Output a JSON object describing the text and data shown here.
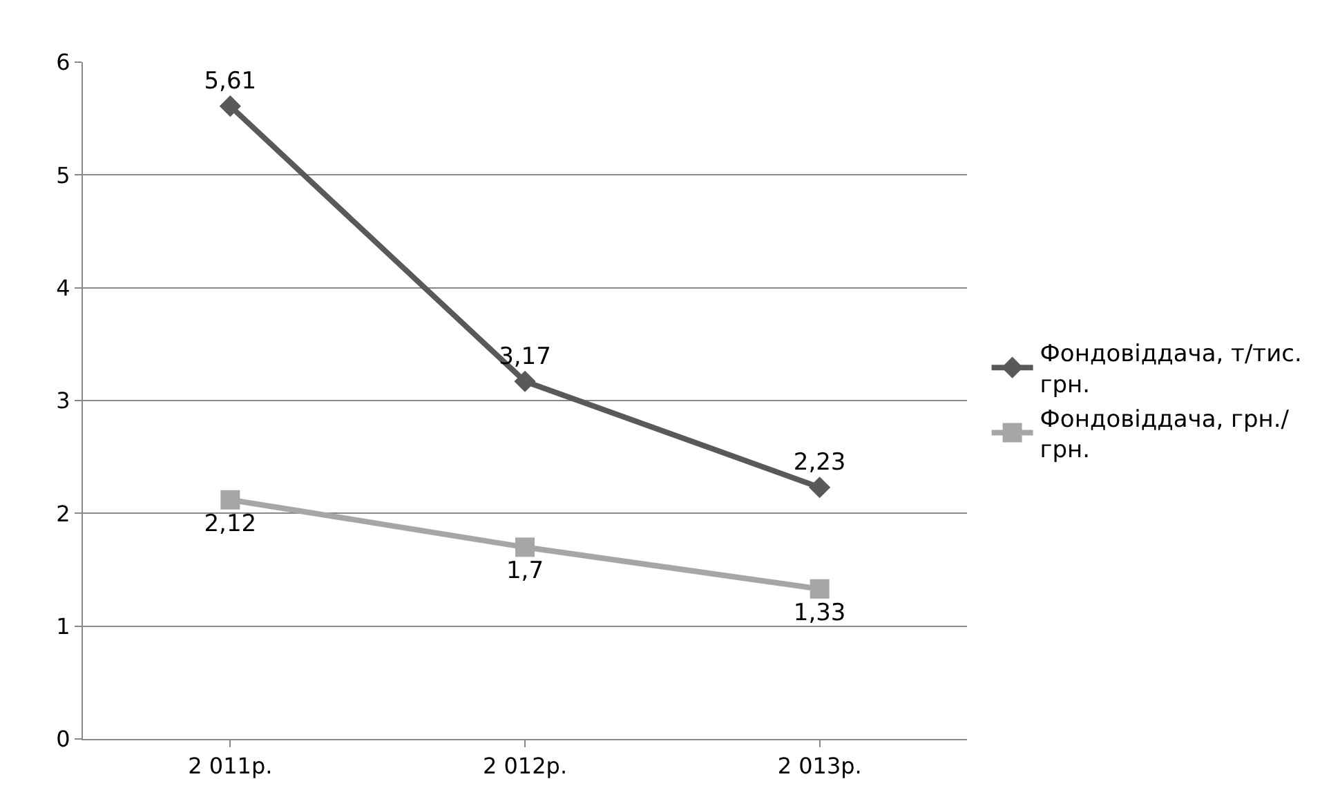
{
  "chart_data": {
    "type": "line",
    "categories": [
      "2 011р.",
      "2 012р.",
      "2 013р."
    ],
    "series": [
      {
        "name": "Фондовіддача, т/тис. грн.",
        "color": "#595959",
        "marker": "diamond",
        "values": [
          5.61,
          3.17,
          2.23
        ],
        "value_labels": [
          "5,61",
          "3,17",
          "2,23"
        ]
      },
      {
        "name": "Фондовіддача, грн./ грн.",
        "color": "#a6a6a6",
        "marker": "square",
        "values": [
          2.12,
          1.7,
          1.33
        ],
        "value_labels": [
          "2,12",
          "1,7",
          "1,33"
        ]
      }
    ],
    "ylim": [
      0,
      6
    ],
    "yticks": [
      0,
      1,
      2,
      3,
      4,
      5,
      6
    ],
    "grid": "y",
    "legend": "right"
  }
}
